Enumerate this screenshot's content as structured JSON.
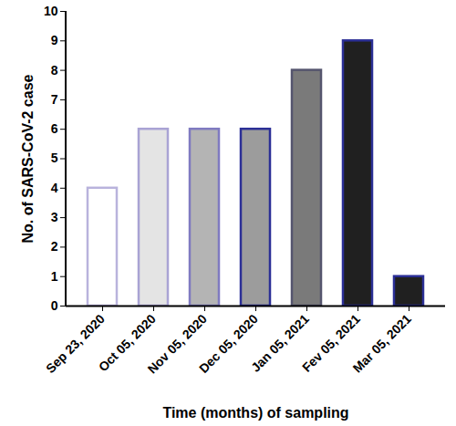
{
  "chart_data": {
    "type": "bar",
    "x_label": "Time (months) of sampling",
    "y_label": "No. of SARS-CoV-2 case",
    "categories": [
      "Sep 23, 2020",
      "Oct 05, 2020",
      "Nov 05, 2020",
      "Dec 05, 2020",
      "Jan 05, 2021",
      "Fev 05, 2021",
      "Mar 05, 2021"
    ],
    "values": [
      4,
      6,
      6,
      6,
      8,
      9,
      1
    ],
    "colors": [
      "#ffffff",
      "#e4e4e4",
      "#b4b4b4",
      "#9c9c9c",
      "#7a7a7a",
      "#202020",
      "#202020"
    ],
    "ylim": [
      0,
      10
    ],
    "yticks": [
      0,
      1,
      2,
      3,
      4,
      5,
      6,
      7,
      8,
      9,
      10
    ],
    "grid": false
  }
}
